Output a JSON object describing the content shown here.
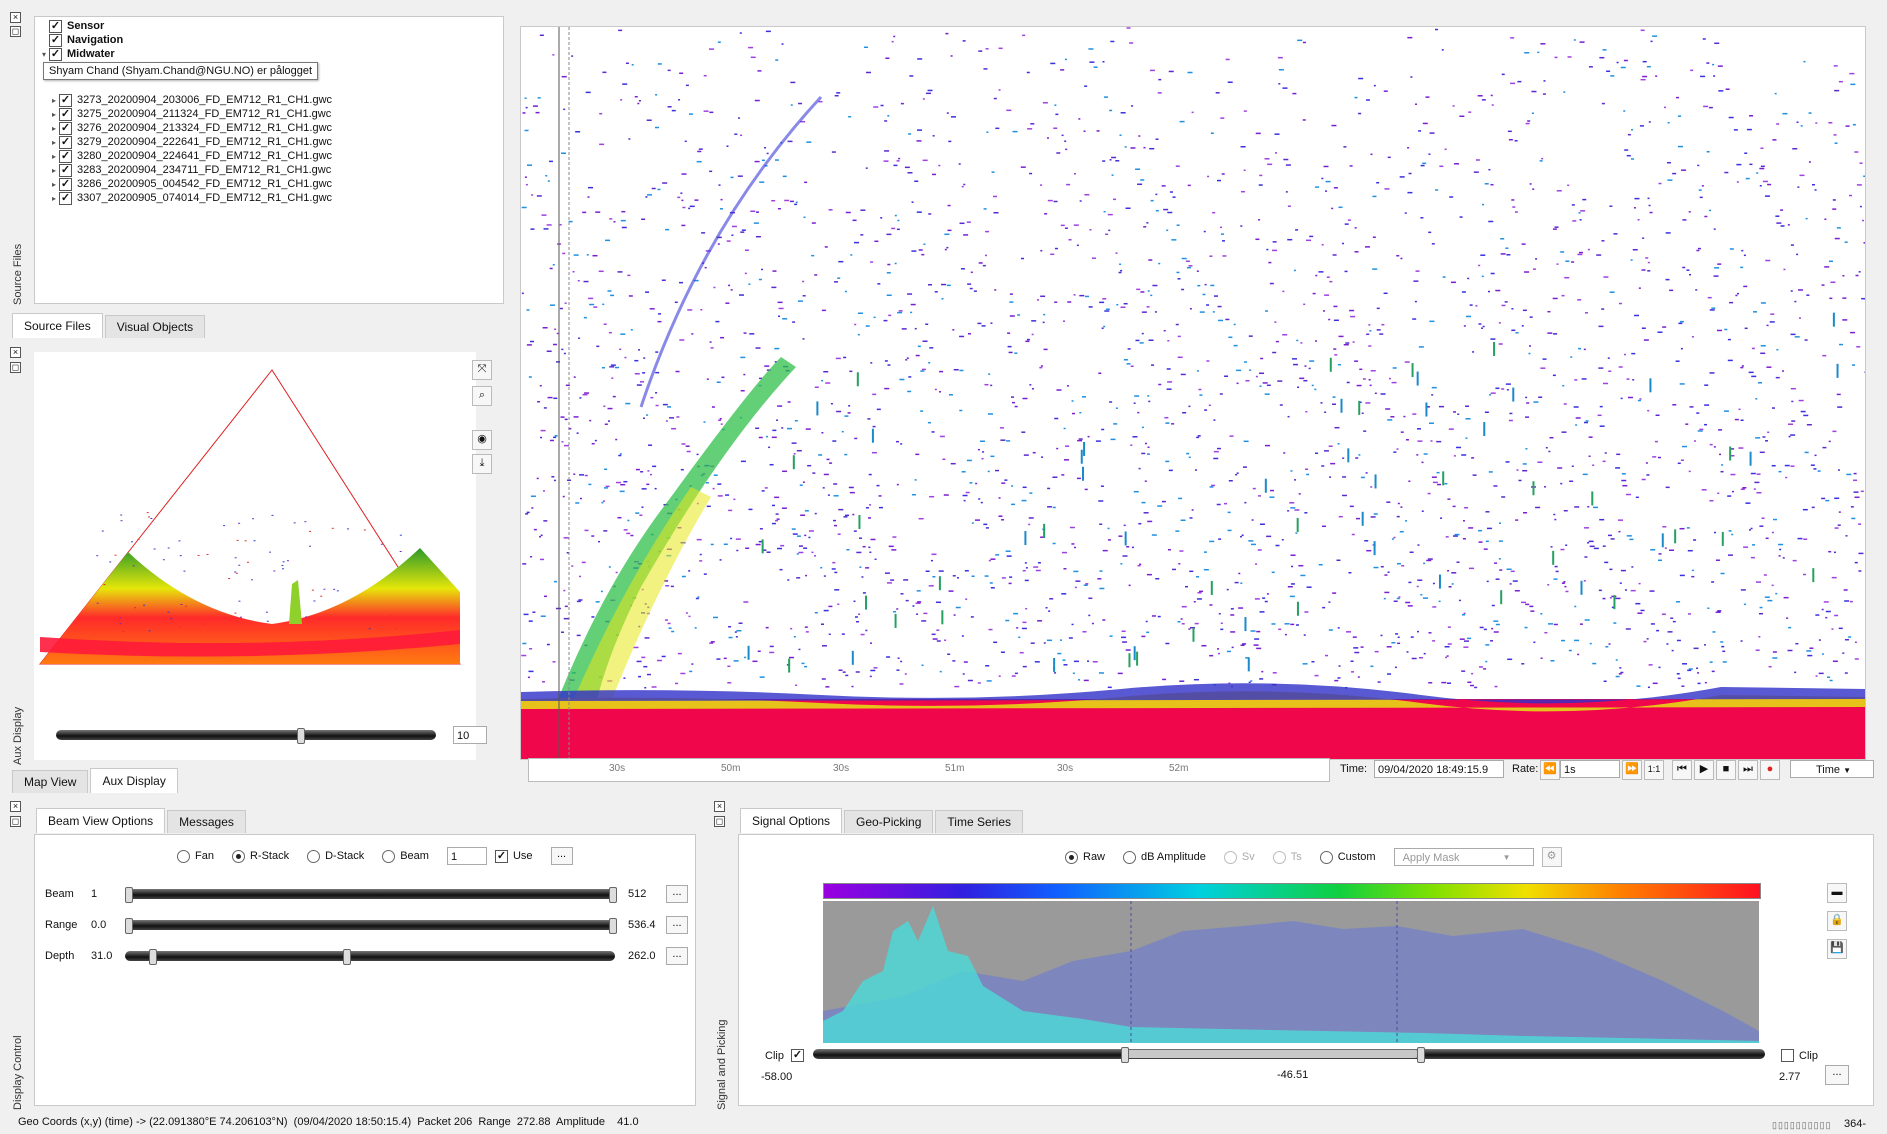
{
  "source_files": {
    "tree": [
      {
        "label": "Sensor",
        "checked": true,
        "bold": true
      },
      {
        "label": "Navigation",
        "checked": true,
        "bold": true
      },
      {
        "label": "Midwater",
        "checked": true,
        "bold": true
      },
      {
        "label": "3273_20200904_203006_FD_EM712_R1_CH1.gwc",
        "checked": true
      },
      {
        "label": "3275_20200904_211324_FD_EM712_R1_CH1.gwc",
        "checked": true
      },
      {
        "label": "3276_20200904_213324_FD_EM712_R1_CH1.gwc",
        "checked": true
      },
      {
        "label": "3279_20200904_222641_FD_EM712_R1_CH1.gwc",
        "checked": true
      },
      {
        "label": "3280_20200904_224641_FD_EM712_R1_CH1.gwc",
        "checked": true
      },
      {
        "label": "3283_20200904_234711_FD_EM712_R1_CH1.gwc",
        "checked": true
      },
      {
        "label": "3286_20200905_004542_FD_EM712_R1_CH1.gwc",
        "checked": true
      },
      {
        "label": "3307_20200905_074014_FD_EM712_R1_CH1.gwc",
        "checked": true
      }
    ],
    "tooltip": "Shyam Chand (Shyam.Chand@NGU.NO) er pålogget",
    "side_label": "Source Files",
    "tabs": [
      "Source Files",
      "Visual Objects"
    ]
  },
  "aux": {
    "side_label": "Aux Display",
    "tabs": [
      "Map View",
      "Aux Display"
    ],
    "spin_value": "10",
    "slider_fraction": 0.65
  },
  "timeline": {
    "ticks": [
      "30s",
      "50m",
      "30s",
      "51m",
      "30s",
      "52m"
    ],
    "time_label": "Time:",
    "time_value": "09/04/2020 18:49:15.9",
    "rate_label": "Rate:",
    "rate_value": "1s",
    "one_to_one": "1:1",
    "mode": "Time"
  },
  "display_control": {
    "side_label": "Display Control",
    "tabs": [
      "Beam View Options",
      "Messages"
    ],
    "modes": [
      {
        "label": "Fan",
        "on": false
      },
      {
        "label": "R-Stack",
        "on": true
      },
      {
        "label": "D-Stack",
        "on": false
      },
      {
        "label": "Beam",
        "on": false
      }
    ],
    "beam_spin": "1",
    "use_label": "Use",
    "more": "...",
    "rows": [
      {
        "label": "Beam",
        "min": "1",
        "max": "512"
      },
      {
        "label": "Range",
        "min": "0.0",
        "max": "536.4"
      },
      {
        "label": "Depth",
        "min": "31.0",
        "max": "262.0"
      }
    ]
  },
  "signal": {
    "side_label": "Signal and Picking",
    "tabs": [
      "Signal Options",
      "Geo-Picking",
      "Time Series"
    ],
    "modes": [
      {
        "label": "Raw",
        "on": true,
        "enabled": true
      },
      {
        "label": "dB Amplitude",
        "on": false,
        "enabled": true
      },
      {
        "label": "Sv",
        "on": false,
        "enabled": false
      },
      {
        "label": "Ts",
        "on": false,
        "enabled": false
      },
      {
        "label": "Custom",
        "on": false,
        "enabled": true
      }
    ],
    "mask_placeholder": "Apply Mask",
    "clip_left": "Clip",
    "clip_right": "Clip",
    "min": "-58.00",
    "mid": "-46.51",
    "max": "2.77",
    "more": "..."
  },
  "status": {
    "text": "Geo Coords (x,y) (time) -> (22.091380°E 74.206103°N)  (09/04/2020 18:50:15.4)  Packet 206  Range  272.88  Amplitude    41.0",
    "right": "364-"
  },
  "colors": {
    "bottom_red": "#f0064a",
    "histogram_cyan": "#4fd6d6",
    "histogram_blue": "#7b86c0",
    "histogram_bg": "#9a9a9a"
  }
}
